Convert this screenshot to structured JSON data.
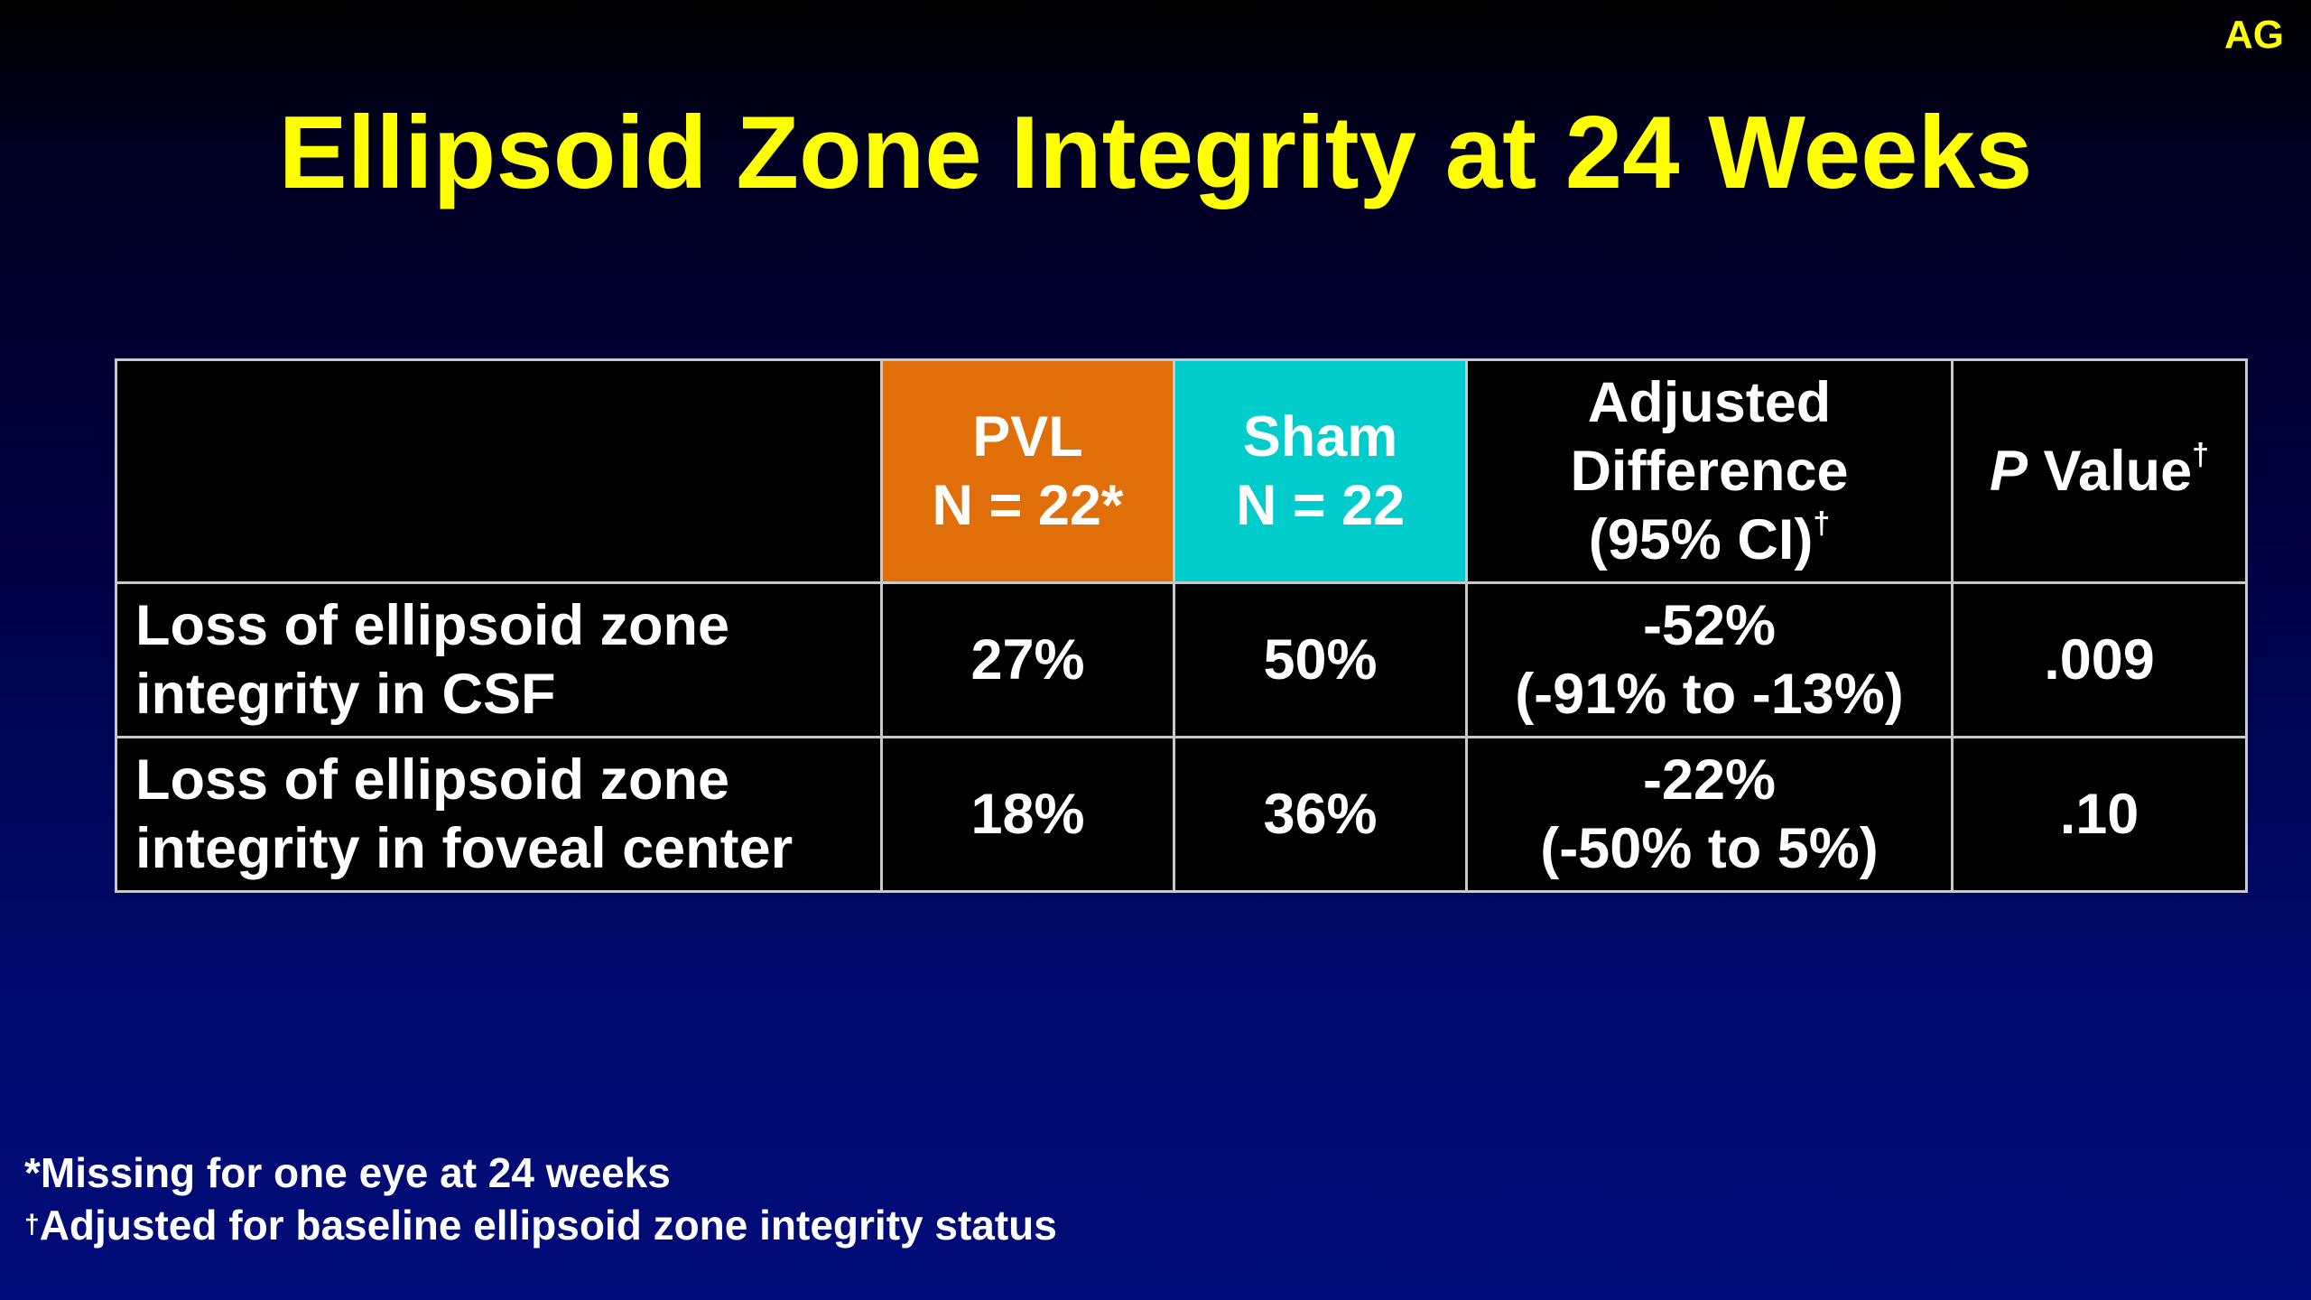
{
  "badge": "AG",
  "title": "Ellipsoid Zone Integrity at 24 Weeks",
  "table": {
    "headers": {
      "pvl": {
        "name": "PVL",
        "n": "N = 22*"
      },
      "sham": {
        "name": "Sham",
        "n": "N = 22"
      },
      "adjusted": {
        "line1": "Adjusted",
        "line2": "Difference",
        "line3": "(95% CI)",
        "dagger": "†"
      },
      "pvalue": {
        "p": "P",
        "label": " Value",
        "dagger": "†"
      }
    },
    "rows": [
      {
        "label_line1": "Loss of ellipsoid zone",
        "label_line2": "integrity in CSF",
        "pvl": "27%",
        "sham": "50%",
        "diff": "-52%",
        "ci": "(-91% to -13%)",
        "p": ".009"
      },
      {
        "label_line1": "Loss of ellipsoid zone",
        "label_line2": "integrity in foveal center",
        "pvl": "18%",
        "sham": "36%",
        "diff": "-22%",
        "ci": "(-50% to 5%)",
        "p": ".10"
      }
    ]
  },
  "footnotes": {
    "missing": "*Missing for one eye at 24 weeks",
    "adjusted_mark": "†",
    "adjusted": "Adjusted for baseline ellipsoid zone integrity status"
  }
}
